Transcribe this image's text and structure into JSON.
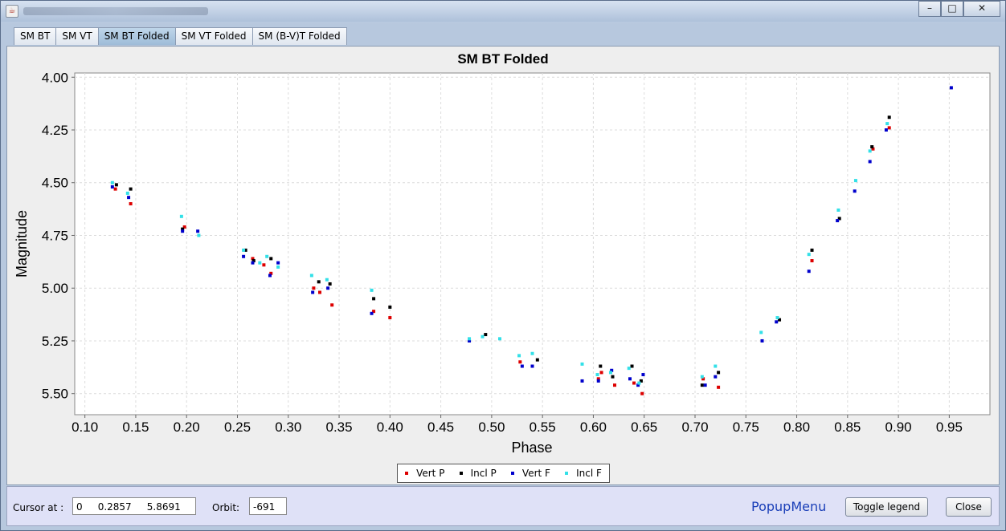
{
  "window": {
    "title": ""
  },
  "window_buttons": {
    "minimize": "–",
    "maximize": "□",
    "close": "✕"
  },
  "tabs": [
    {
      "label": "SM BT"
    },
    {
      "label": "SM VT"
    },
    {
      "label": "SM BT Folded",
      "active": true
    },
    {
      "label": "SM VT Folded"
    },
    {
      "label": "SM (B-V)T Folded"
    }
  ],
  "chart_data": {
    "type": "scatter",
    "title": "SM BT Folded",
    "xlabel": "Phase",
    "ylabel": "Magnitude",
    "xlim": [
      0.09,
      0.99
    ],
    "ylim": [
      5.6,
      3.98
    ],
    "y_inverted": true,
    "grid": true,
    "legend_position": "bottom-center",
    "x_ticks": [
      "0.10",
      "0.15",
      "0.20",
      "0.25",
      "0.30",
      "0.35",
      "0.40",
      "0.45",
      "0.50",
      "0.55",
      "0.60",
      "0.65",
      "0.70",
      "0.75",
      "0.80",
      "0.85",
      "0.90",
      "0.95"
    ],
    "y_ticks": [
      "4.00",
      "4.25",
      "4.50",
      "4.75",
      "5.00",
      "5.25",
      "5.50"
    ],
    "series": [
      {
        "name": "Vert P",
        "color": "#dd0000",
        "points": [
          [
            0.13,
            4.53
          ],
          [
            0.145,
            4.6
          ],
          [
            0.198,
            4.71
          ],
          [
            0.265,
            4.86
          ],
          [
            0.276,
            4.89
          ],
          [
            0.283,
            4.93
          ],
          [
            0.325,
            5.0
          ],
          [
            0.331,
            5.02
          ],
          [
            0.343,
            5.08
          ],
          [
            0.384,
            5.11
          ],
          [
            0.4,
            5.14
          ],
          [
            0.528,
            5.35
          ],
          [
            0.605,
            5.43
          ],
          [
            0.608,
            5.4
          ],
          [
            0.621,
            5.46
          ],
          [
            0.64,
            5.45
          ],
          [
            0.648,
            5.5
          ],
          [
            0.708,
            5.43
          ],
          [
            0.723,
            5.47
          ],
          [
            0.815,
            4.87
          ],
          [
            0.875,
            4.34
          ],
          [
            0.891,
            4.24
          ]
        ]
      },
      {
        "name": "Incl P",
        "color": "#000000",
        "points": [
          [
            0.131,
            4.51
          ],
          [
            0.145,
            4.53
          ],
          [
            0.196,
            4.72
          ],
          [
            0.258,
            4.82
          ],
          [
            0.266,
            4.87
          ],
          [
            0.283,
            4.86
          ],
          [
            0.33,
            4.97
          ],
          [
            0.341,
            4.98
          ],
          [
            0.384,
            5.05
          ],
          [
            0.4,
            5.09
          ],
          [
            0.494,
            5.22
          ],
          [
            0.545,
            5.34
          ],
          [
            0.607,
            5.37
          ],
          [
            0.619,
            5.42
          ],
          [
            0.638,
            5.37
          ],
          [
            0.647,
            5.44
          ],
          [
            0.707,
            5.46
          ],
          [
            0.723,
            5.4
          ],
          [
            0.783,
            5.15
          ],
          [
            0.815,
            4.82
          ],
          [
            0.842,
            4.67
          ],
          [
            0.874,
            4.33
          ],
          [
            0.891,
            4.19
          ]
        ]
      },
      {
        "name": "Vert F",
        "color": "#0000cc",
        "points": [
          [
            0.127,
            4.52
          ],
          [
            0.143,
            4.57
          ],
          [
            0.196,
            4.73
          ],
          [
            0.211,
            4.73
          ],
          [
            0.256,
            4.85
          ],
          [
            0.265,
            4.88
          ],
          [
            0.282,
            4.94
          ],
          [
            0.29,
            4.88
          ],
          [
            0.324,
            5.02
          ],
          [
            0.339,
            5.0
          ],
          [
            0.382,
            5.12
          ],
          [
            0.478,
            5.25
          ],
          [
            0.53,
            5.37
          ],
          [
            0.54,
            5.37
          ],
          [
            0.589,
            5.44
          ],
          [
            0.605,
            5.44
          ],
          [
            0.618,
            5.39
          ],
          [
            0.636,
            5.43
          ],
          [
            0.644,
            5.46
          ],
          [
            0.649,
            5.41
          ],
          [
            0.71,
            5.46
          ],
          [
            0.72,
            5.42
          ],
          [
            0.766,
            5.25
          ],
          [
            0.78,
            5.16
          ],
          [
            0.812,
            4.92
          ],
          [
            0.84,
            4.68
          ],
          [
            0.857,
            4.54
          ],
          [
            0.872,
            4.4
          ],
          [
            0.888,
            4.25
          ],
          [
            0.952,
            4.05
          ]
        ]
      },
      {
        "name": "Incl F",
        "color": "#33e0e8",
        "points": [
          [
            0.127,
            4.5
          ],
          [
            0.142,
            4.55
          ],
          [
            0.195,
            4.66
          ],
          [
            0.212,
            4.75
          ],
          [
            0.256,
            4.82
          ],
          [
            0.272,
            4.88
          ],
          [
            0.279,
            4.85
          ],
          [
            0.29,
            4.9
          ],
          [
            0.323,
            4.94
          ],
          [
            0.338,
            4.96
          ],
          [
            0.382,
            5.01
          ],
          [
            0.478,
            5.24
          ],
          [
            0.491,
            5.23
          ],
          [
            0.508,
            5.24
          ],
          [
            0.527,
            5.32
          ],
          [
            0.54,
            5.31
          ],
          [
            0.589,
            5.36
          ],
          [
            0.604,
            5.41
          ],
          [
            0.617,
            5.4
          ],
          [
            0.635,
            5.38
          ],
          [
            0.645,
            5.45
          ],
          [
            0.707,
            5.42
          ],
          [
            0.72,
            5.37
          ],
          [
            0.765,
            5.21
          ],
          [
            0.781,
            5.14
          ],
          [
            0.812,
            4.84
          ],
          [
            0.841,
            4.63
          ],
          [
            0.858,
            4.49
          ],
          [
            0.872,
            4.35
          ],
          [
            0.889,
            4.22
          ]
        ]
      }
    ]
  },
  "bottom": {
    "cursor_label": "Cursor at :",
    "cursor_value": "0     0.2857     5.8691",
    "orbit_label": "Orbit:",
    "orbit_value": "-691",
    "popup_menu": "PopupMenu",
    "toggle_legend": "Toggle legend",
    "close": "Close"
  }
}
